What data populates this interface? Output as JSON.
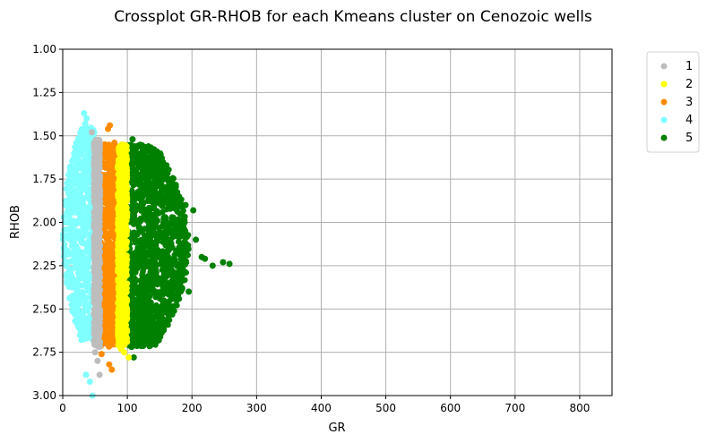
{
  "chart_data": {
    "type": "scatter",
    "title": "Crossplot GR-RHOB for each Kmeans cluster on Cenozoic wells",
    "xlabel": "GR",
    "ylabel": "RHOB",
    "xlim": [
      0,
      850
    ],
    "ylim": [
      3.0,
      1.0
    ],
    "y_inverted": true,
    "grid": true,
    "legend_position": "outside-top-right",
    "x_ticks": [
      "0",
      "100",
      "200",
      "300",
      "400",
      "500",
      "600",
      "700",
      "800"
    ],
    "x_tick_values": [
      0,
      100,
      200,
      300,
      400,
      500,
      600,
      700,
      800
    ],
    "y_ticks": [
      "1.00",
      "1.25",
      "1.50",
      "1.75",
      "2.00",
      "2.25",
      "2.50",
      "2.75",
      "3.00"
    ],
    "y_tick_values": [
      1.0,
      1.25,
      1.5,
      1.75,
      2.0,
      2.25,
      2.5,
      2.75,
      3.0
    ],
    "series": [
      {
        "name": "1",
        "color": "#bdbdbd",
        "gr_range": [
          48,
          58
        ],
        "rhob_range": [
          1.52,
          2.72
        ],
        "points": [
          [
            45,
            1.48
          ],
          [
            54,
            2.8
          ],
          [
            57,
            2.88
          ],
          [
            50,
            2.75
          ],
          [
            52,
            1.56
          ]
        ]
      },
      {
        "name": "2",
        "color": "#ffff00",
        "gr_range": [
          85,
          100
        ],
        "rhob_range": [
          1.55,
          2.72
        ],
        "points": [
          [
            92,
            1.55
          ],
          [
            95,
            2.75
          ],
          [
            90,
            2.73
          ],
          [
            102,
            2.78
          ]
        ]
      },
      {
        "name": "3",
        "color": "#ff8c00",
        "gr_range": [
          58,
          85
        ],
        "rhob_range": [
          1.55,
          2.72
        ],
        "points": [
          [
            73,
            1.44
          ],
          [
            70,
            1.46
          ],
          [
            80,
            1.54
          ],
          [
            65,
            1.55
          ],
          [
            72,
            2.82
          ],
          [
            76,
            2.85
          ],
          [
            60,
            2.76
          ]
        ]
      },
      {
        "name": "4",
        "color": "#80ffff",
        "gr_range": [
          0,
          50
        ],
        "rhob_range": [
          1.45,
          2.68
        ],
        "points": [
          [
            33,
            1.37
          ],
          [
            37,
            1.4
          ],
          [
            35,
            1.43
          ],
          [
            30,
            1.47
          ],
          [
            36,
            2.88
          ],
          [
            42,
            2.92
          ],
          [
            46,
            3.0
          ],
          [
            5,
            2.08
          ],
          [
            3,
            2.15
          ],
          [
            8,
            2.0
          ]
        ]
      },
      {
        "name": "5",
        "color": "#008000",
        "gr_range": [
          100,
          195
        ],
        "rhob_range": [
          1.55,
          2.72
        ],
        "points": [
          [
            108,
            1.52
          ],
          [
            110,
            1.56
          ],
          [
            120,
            1.62
          ],
          [
            150,
            1.76
          ],
          [
            170,
            1.85
          ],
          [
            190,
            1.9
          ],
          [
            202,
            1.93
          ],
          [
            206,
            2.1
          ],
          [
            215,
            2.2
          ],
          [
            220,
            2.21
          ],
          [
            248,
            2.23
          ],
          [
            258,
            2.24
          ],
          [
            232,
            2.25
          ],
          [
            185,
            2.38
          ],
          [
            195,
            2.4
          ],
          [
            150,
            2.55
          ],
          [
            110,
            2.78
          ],
          [
            120,
            2.7
          ]
        ]
      }
    ]
  }
}
